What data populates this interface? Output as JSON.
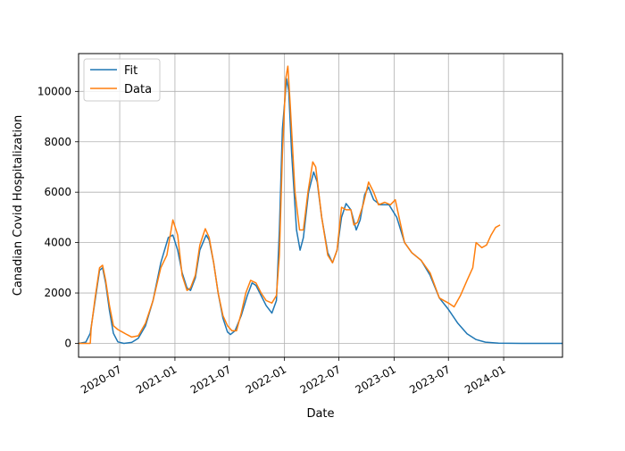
{
  "chart_data": {
    "type": "line",
    "title": "",
    "xlabel": "Date",
    "ylabel": "Canadian Covid Hospitalization",
    "x_scale": "date",
    "xlim": [
      "2020-02-15",
      "2024-07-15"
    ],
    "ylim": [
      -550,
      11500
    ],
    "x_ticks": [
      "2020-07",
      "2021-01",
      "2021-07",
      "2022-01",
      "2022-07",
      "2023-01",
      "2023-07",
      "2024-01"
    ],
    "y_ticks": [
      0,
      2000,
      4000,
      6000,
      8000,
      10000
    ],
    "grid": true,
    "legend_position": "upper-left",
    "series": [
      {
        "name": "Fit",
        "color": "#1f77b4",
        "points": [
          [
            "2020-02-15",
            0
          ],
          [
            "2020-03-10",
            50
          ],
          [
            "2020-03-25",
            400
          ],
          [
            "2020-04-10",
            1700
          ],
          [
            "2020-04-25",
            2900
          ],
          [
            "2020-05-05",
            3000
          ],
          [
            "2020-05-15",
            2400
          ],
          [
            "2020-05-28",
            1300
          ],
          [
            "2020-06-10",
            400
          ],
          [
            "2020-06-25",
            60
          ],
          [
            "2020-07-15",
            0
          ],
          [
            "2020-08-10",
            40
          ],
          [
            "2020-09-01",
            200
          ],
          [
            "2020-09-25",
            700
          ],
          [
            "2020-10-20",
            1700
          ],
          [
            "2020-11-15",
            3200
          ],
          [
            "2020-12-10",
            4200
          ],
          [
            "2020-12-25",
            4300
          ],
          [
            "2021-01-10",
            3700
          ],
          [
            "2021-01-25",
            2800
          ],
          [
            "2021-02-10",
            2200
          ],
          [
            "2021-02-22",
            2100
          ],
          [
            "2021-03-10",
            2600
          ],
          [
            "2021-03-25",
            3700
          ],
          [
            "2021-04-15",
            4300
          ],
          [
            "2021-04-25",
            4100
          ],
          [
            "2021-05-10",
            3200
          ],
          [
            "2021-05-25",
            2000
          ],
          [
            "2021-06-10",
            1000
          ],
          [
            "2021-06-25",
            450
          ],
          [
            "2021-07-05",
            350
          ],
          [
            "2021-07-20",
            500
          ],
          [
            "2021-08-10",
            1100
          ],
          [
            "2021-08-30",
            1900
          ],
          [
            "2021-09-15",
            2400
          ],
          [
            "2021-09-28",
            2300
          ],
          [
            "2021-10-15",
            1900
          ],
          [
            "2021-11-01",
            1500
          ],
          [
            "2021-11-20",
            1200
          ],
          [
            "2021-12-05",
            1700
          ],
          [
            "2021-12-15",
            4500
          ],
          [
            "2021-12-25",
            8500
          ],
          [
            "2022-01-08",
            10500
          ],
          [
            "2022-01-15",
            10000
          ],
          [
            "2022-01-25",
            7500
          ],
          [
            "2022-02-10",
            4500
          ],
          [
            "2022-02-22",
            3700
          ],
          [
            "2022-03-05",
            4200
          ],
          [
            "2022-03-22",
            6000
          ],
          [
            "2022-04-08",
            6800
          ],
          [
            "2022-04-20",
            6400
          ],
          [
            "2022-05-05",
            5000
          ],
          [
            "2022-05-25",
            3600
          ],
          [
            "2022-06-10",
            3200
          ],
          [
            "2022-06-25",
            3700
          ],
          [
            "2022-07-10",
            5000
          ],
          [
            "2022-07-25",
            5550
          ],
          [
            "2022-08-10",
            5300
          ],
          [
            "2022-08-28",
            4500
          ],
          [
            "2022-09-10",
            4900
          ],
          [
            "2022-09-25",
            5900
          ],
          [
            "2022-10-08",
            6200
          ],
          [
            "2022-10-25",
            5700
          ],
          [
            "2022-11-15",
            5500
          ],
          [
            "2022-12-15",
            5500
          ],
          [
            "2023-01-10",
            5000
          ],
          [
            "2023-02-05",
            4000
          ],
          [
            "2023-03-01",
            3600
          ],
          [
            "2023-04-01",
            3300
          ],
          [
            "2023-05-01",
            2700
          ],
          [
            "2023-06-01",
            1800
          ],
          [
            "2023-07-01",
            1350
          ],
          [
            "2023-08-01",
            800
          ],
          [
            "2023-09-01",
            380
          ],
          [
            "2023-10-01",
            150
          ],
          [
            "2023-11-01",
            50
          ],
          [
            "2023-12-15",
            10
          ],
          [
            "2024-03-01",
            0
          ],
          [
            "2024-07-15",
            0
          ]
        ]
      },
      {
        "name": "Data",
        "color": "#ff7f0e",
        "points": [
          [
            "2020-02-15",
            0
          ],
          [
            "2020-03-25",
            0
          ],
          [
            "2020-03-28",
            600
          ],
          [
            "2020-04-10",
            1800
          ],
          [
            "2020-04-25",
            3000
          ],
          [
            "2020-05-05",
            3100
          ],
          [
            "2020-05-15",
            2500
          ],
          [
            "2020-05-28",
            1500
          ],
          [
            "2020-06-10",
            700
          ],
          [
            "2020-06-25",
            550
          ],
          [
            "2020-07-10",
            450
          ],
          [
            "2020-07-25",
            350
          ],
          [
            "2020-08-10",
            250
          ],
          [
            "2020-09-01",
            300
          ],
          [
            "2020-09-25",
            800
          ],
          [
            "2020-10-20",
            1700
          ],
          [
            "2020-11-15",
            3000
          ],
          [
            "2020-12-05",
            3500
          ],
          [
            "2020-12-15",
            4200
          ],
          [
            "2020-12-25",
            4900
          ],
          [
            "2021-01-10",
            4300
          ],
          [
            "2021-01-25",
            2700
          ],
          [
            "2021-02-10",
            2100
          ],
          [
            "2021-02-22",
            2200
          ],
          [
            "2021-03-10",
            2700
          ],
          [
            "2021-03-25",
            3900
          ],
          [
            "2021-04-12",
            4550
          ],
          [
            "2021-04-25",
            4200
          ],
          [
            "2021-05-10",
            3200
          ],
          [
            "2021-05-25",
            2000
          ],
          [
            "2021-06-10",
            1100
          ],
          [
            "2021-06-25",
            700
          ],
          [
            "2021-07-10",
            500
          ],
          [
            "2021-07-25",
            500
          ],
          [
            "2021-08-10",
            1200
          ],
          [
            "2021-08-25",
            2000
          ],
          [
            "2021-09-10",
            2500
          ],
          [
            "2021-09-28",
            2400
          ],
          [
            "2021-10-15",
            2000
          ],
          [
            "2021-11-01",
            1700
          ],
          [
            "2021-11-20",
            1600
          ],
          [
            "2021-12-05",
            1900
          ],
          [
            "2021-12-15",
            3500
          ],
          [
            "2021-12-25",
            7500
          ],
          [
            "2022-01-05",
            10500
          ],
          [
            "2022-01-12",
            11000
          ],
          [
            "2022-01-20",
            9500
          ],
          [
            "2022-02-05",
            6000
          ],
          [
            "2022-02-20",
            4500
          ],
          [
            "2022-03-05",
            4500
          ],
          [
            "2022-03-20",
            6000
          ],
          [
            "2022-04-05",
            7200
          ],
          [
            "2022-04-15",
            7000
          ],
          [
            "2022-05-05",
            5000
          ],
          [
            "2022-05-25",
            3500
          ],
          [
            "2022-06-10",
            3200
          ],
          [
            "2022-06-25",
            3700
          ],
          [
            "2022-07-10",
            5400
          ],
          [
            "2022-07-25",
            5300
          ],
          [
            "2022-08-10",
            5300
          ],
          [
            "2022-08-20",
            4700
          ],
          [
            "2022-09-01",
            4800
          ],
          [
            "2022-09-20",
            5500
          ],
          [
            "2022-10-08",
            6400
          ],
          [
            "2022-10-25",
            6000
          ],
          [
            "2022-11-10",
            5500
          ],
          [
            "2022-12-01",
            5600
          ],
          [
            "2022-12-20",
            5500
          ],
          [
            "2023-01-05",
            5700
          ],
          [
            "2023-02-05",
            4000
          ],
          [
            "2023-03-01",
            3600
          ],
          [
            "2023-04-01",
            3300
          ],
          [
            "2023-05-01",
            2800
          ],
          [
            "2023-06-01",
            1800
          ],
          [
            "2023-07-01",
            1600
          ],
          [
            "2023-07-20",
            1450
          ],
          [
            "2023-08-10",
            1900
          ],
          [
            "2023-09-01",
            2500
          ],
          [
            "2023-09-20",
            3000
          ],
          [
            "2023-10-01",
            4000
          ],
          [
            "2023-10-20",
            3800
          ],
          [
            "2023-11-05",
            3900
          ],
          [
            "2023-11-20",
            4300
          ],
          [
            "2023-12-05",
            4600
          ],
          [
            "2023-12-20",
            4700
          ]
        ]
      }
    ]
  }
}
